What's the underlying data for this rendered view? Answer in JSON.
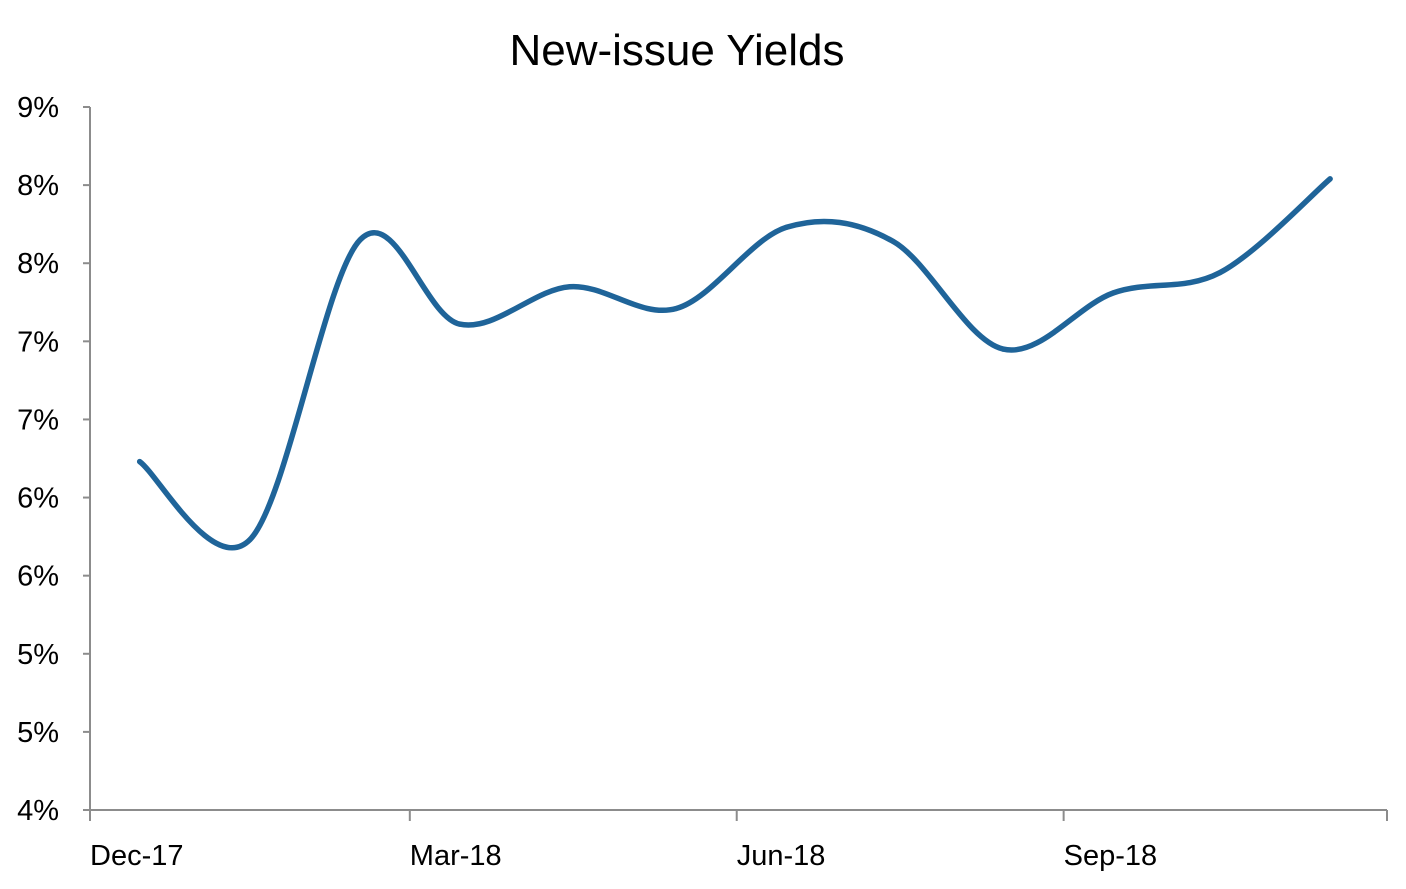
{
  "chart_data": {
    "type": "line",
    "title": "New-issue Yields",
    "xlabel": "",
    "ylabel": "",
    "x_tick_labels": [
      "Dec-17",
      "Mar-18",
      "Jun-18",
      "Sep-18"
    ],
    "y_tick_labels": [
      "4%",
      "5%",
      "5%",
      "6%",
      "6%",
      "7%",
      "7%",
      "8%",
      "8%",
      "9%"
    ],
    "ylim": [
      4.0,
      8.5
    ],
    "grid": false,
    "legend": "none",
    "series": [
      {
        "color": "#1f6499",
        "points": [
          {
            "x": "2017-12-15",
            "y": 6.23
          },
          {
            "x": "2018-01-15",
            "y": 5.73
          },
          {
            "x": "2018-02-15",
            "y": 7.65
          },
          {
            "x": "2018-03-15",
            "y": 7.11
          },
          {
            "x": "2018-04-15",
            "y": 7.35
          },
          {
            "x": "2018-05-15",
            "y": 7.21
          },
          {
            "x": "2018-06-15",
            "y": 7.73
          },
          {
            "x": "2018-07-15",
            "y": 7.64
          },
          {
            "x": "2018-08-15",
            "y": 6.95
          },
          {
            "x": "2018-09-15",
            "y": 7.31
          },
          {
            "x": "2018-10-15",
            "y": 7.44
          },
          {
            "x": "2018-11-15",
            "y": 8.04
          }
        ]
      }
    ]
  }
}
